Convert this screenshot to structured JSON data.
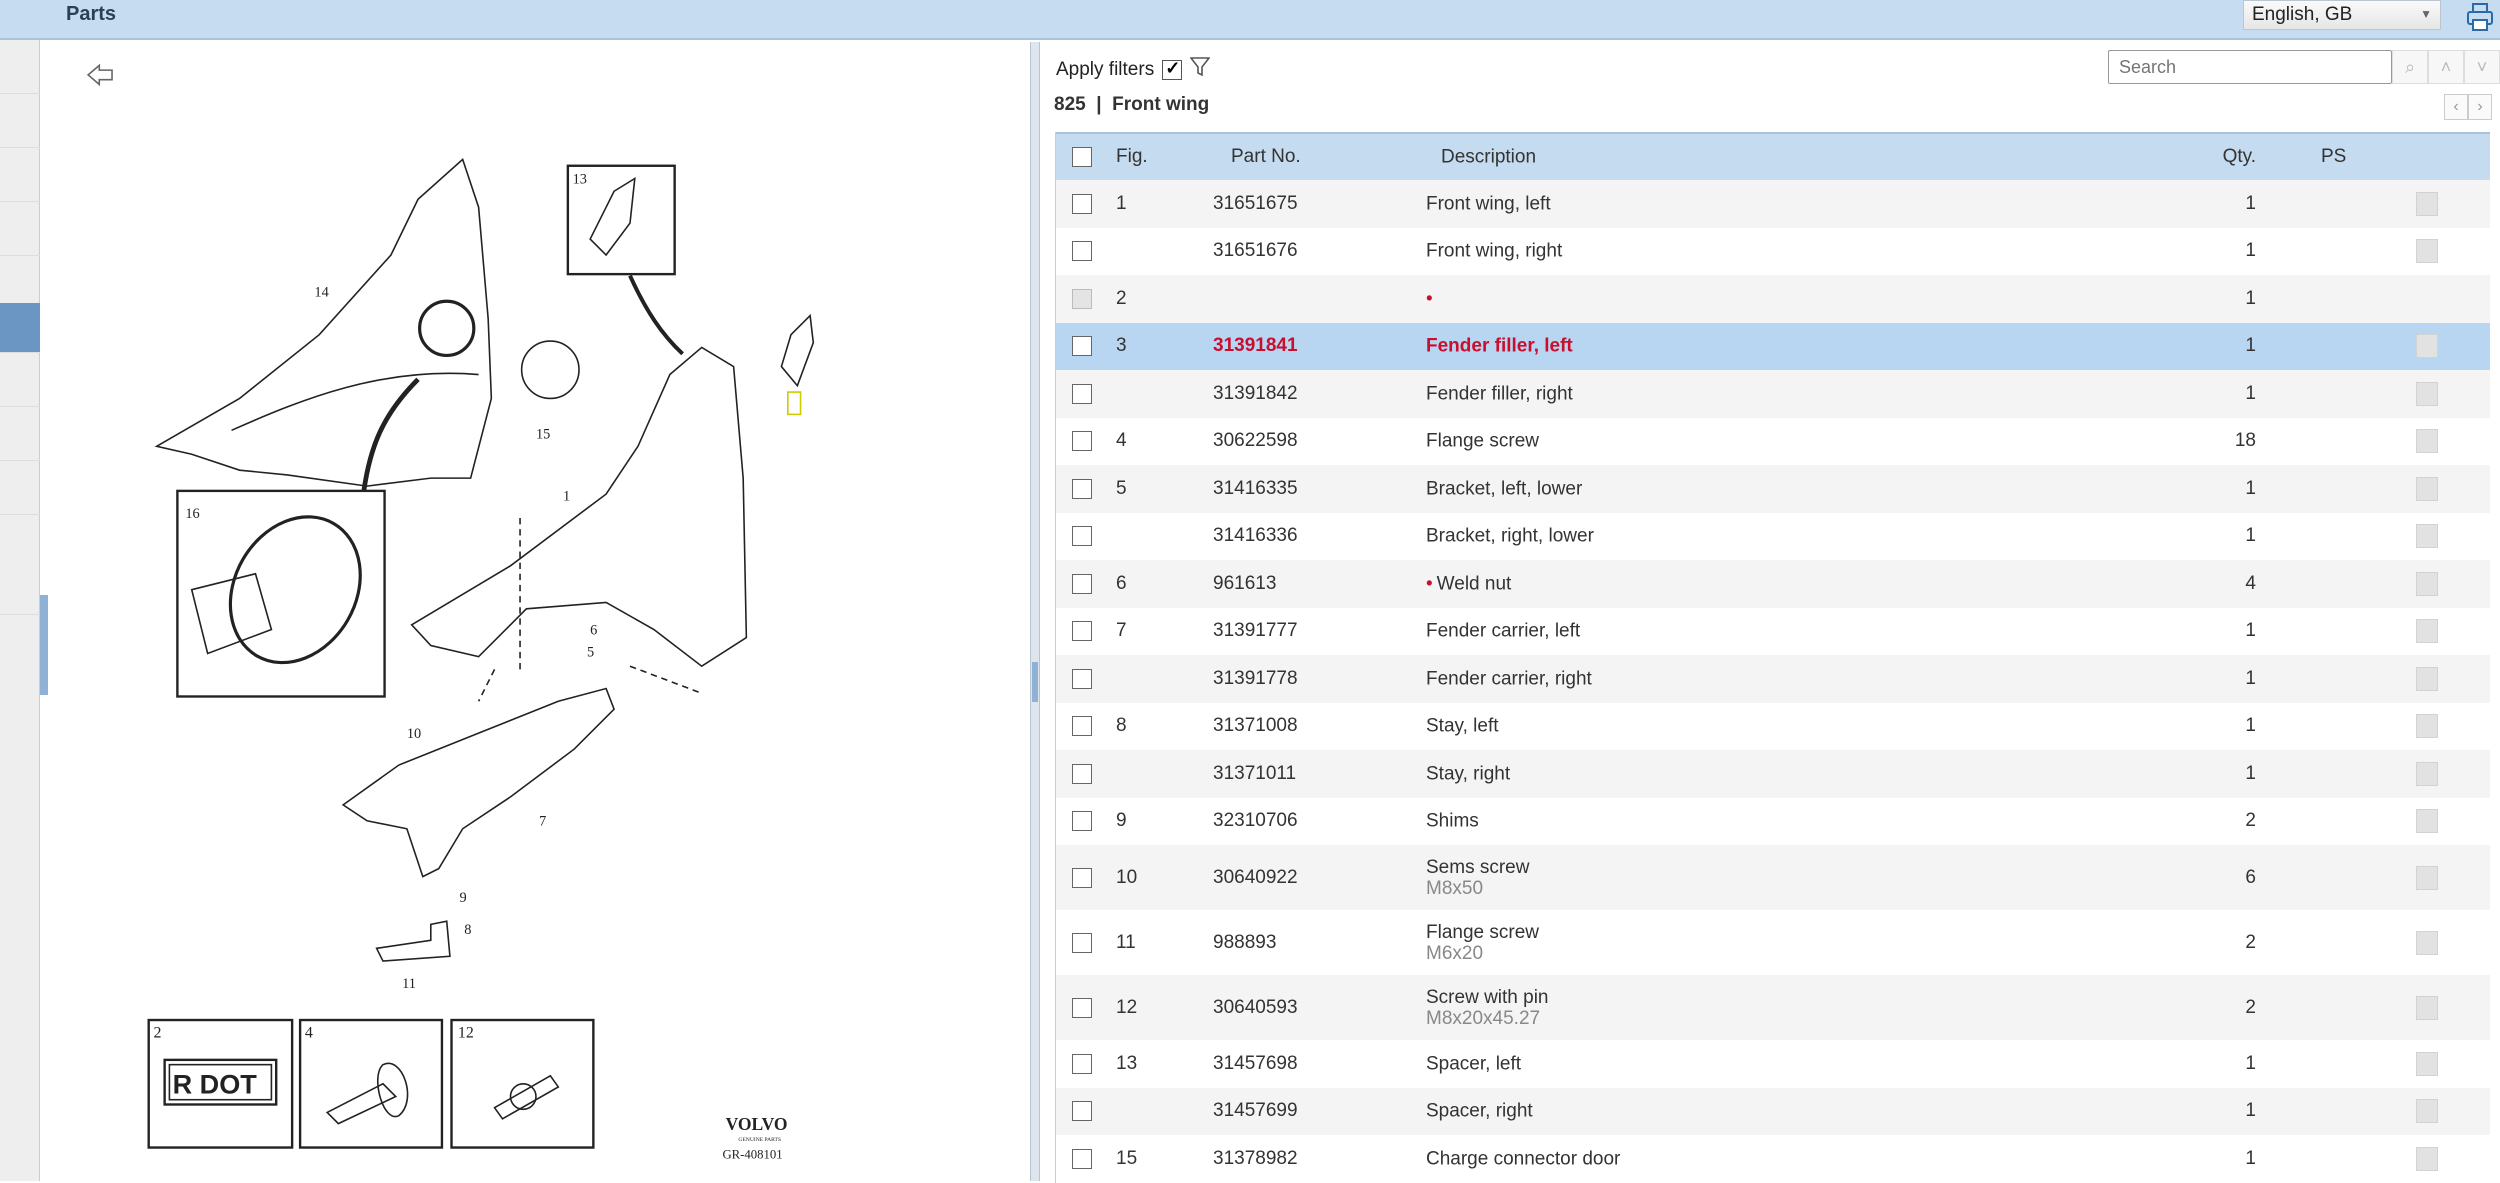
{
  "header": {
    "title": "Parts",
    "language": "English, GB",
    "print_icon": "printer-icon"
  },
  "toolbar": {
    "apply_filters_label": "Apply filters",
    "apply_filters_checked": true,
    "filter_icon": "funnel-icon",
    "search_placeholder": "Search"
  },
  "breadcrumb": {
    "text": "825  |  Front wing"
  },
  "table": {
    "columns": {
      "fig": "Fig.",
      "part_no": "Part No.",
      "description": "Description",
      "qty": "Qty.",
      "ps": "PS"
    },
    "rows": [
      {
        "fig": "1",
        "part_no": "31651675",
        "description": "Front wing, left",
        "qty": "1",
        "ps": true
      },
      {
        "fig": "",
        "part_no": "31651676",
        "description": "Front wing, right",
        "qty": "1",
        "ps": true
      },
      {
        "fig": "2",
        "part_no": "",
        "description": "",
        "red_dot": true,
        "qty": "1",
        "ps": false,
        "disabled": true
      },
      {
        "fig": "3",
        "part_no": "31391841",
        "description": "Fender filler, left",
        "qty": "1",
        "ps": true,
        "selected": true
      },
      {
        "fig": "",
        "part_no": "31391842",
        "description": "Fender filler, right",
        "qty": "1",
        "ps": true
      },
      {
        "fig": "4",
        "part_no": "30622598",
        "description": "Flange screw",
        "qty": "18",
        "ps": true
      },
      {
        "fig": "5",
        "part_no": "31416335",
        "description": "Bracket, left, lower",
        "qty": "1",
        "ps": true
      },
      {
        "fig": "",
        "part_no": "31416336",
        "description": "Bracket, right, lower",
        "qty": "1",
        "ps": true
      },
      {
        "fig": "6",
        "part_no": "961613",
        "description": "Weld nut",
        "red_dot": true,
        "qty": "4",
        "ps": true
      },
      {
        "fig": "7",
        "part_no": "31391777",
        "description": "Fender carrier, left",
        "qty": "1",
        "ps": true
      },
      {
        "fig": "",
        "part_no": "31391778",
        "description": "Fender carrier, right",
        "qty": "1",
        "ps": true
      },
      {
        "fig": "8",
        "part_no": "31371008",
        "description": "Stay, left",
        "qty": "1",
        "ps": true
      },
      {
        "fig": "",
        "part_no": "31371011",
        "description": "Stay, right",
        "qty": "1",
        "ps": true
      },
      {
        "fig": "9",
        "part_no": "32310706",
        "description": "Shims",
        "qty": "2",
        "ps": true
      },
      {
        "fig": "10",
        "part_no": "30640922",
        "description": "Sems screw",
        "sub": "M8x50",
        "qty": "6",
        "ps": true
      },
      {
        "fig": "11",
        "part_no": "988893",
        "description": "Flange screw",
        "sub": "M6x20",
        "qty": "2",
        "ps": true
      },
      {
        "fig": "12",
        "part_no": "30640593",
        "description": "Screw with pin",
        "sub": "M8x20x45.27",
        "qty": "2",
        "ps": true
      },
      {
        "fig": "13",
        "part_no": "31457698",
        "description": "Spacer, left",
        "qty": "1",
        "ps": true
      },
      {
        "fig": "",
        "part_no": "31457699",
        "description": "Spacer, right",
        "qty": "1",
        "ps": true
      },
      {
        "fig": "15",
        "part_no": "31378982",
        "description": "Charge connector door",
        "qty": "1",
        "ps": true
      }
    ]
  },
  "diagram": {
    "callouts": {
      "c1": "1",
      "c2": "2",
      "c4": "4",
      "c5": "5",
      "c6": "6",
      "c7": "7",
      "c8": "8",
      "c9": "9",
      "c10": "10",
      "c11": "11",
      "c12": "12",
      "c13": "13",
      "c14": "14",
      "c15": "15",
      "c16": "16"
    },
    "label_text": "R DOT",
    "brand": "VOLVO",
    "brand_sub": "GENUINE PARTS",
    "ref": "GR-408101"
  },
  "colors": {
    "header": "#c6dcf1",
    "selected_row": "#b8d5f1",
    "accent_red": "#c8102e",
    "sidebar_selected": "#6b96c4"
  }
}
